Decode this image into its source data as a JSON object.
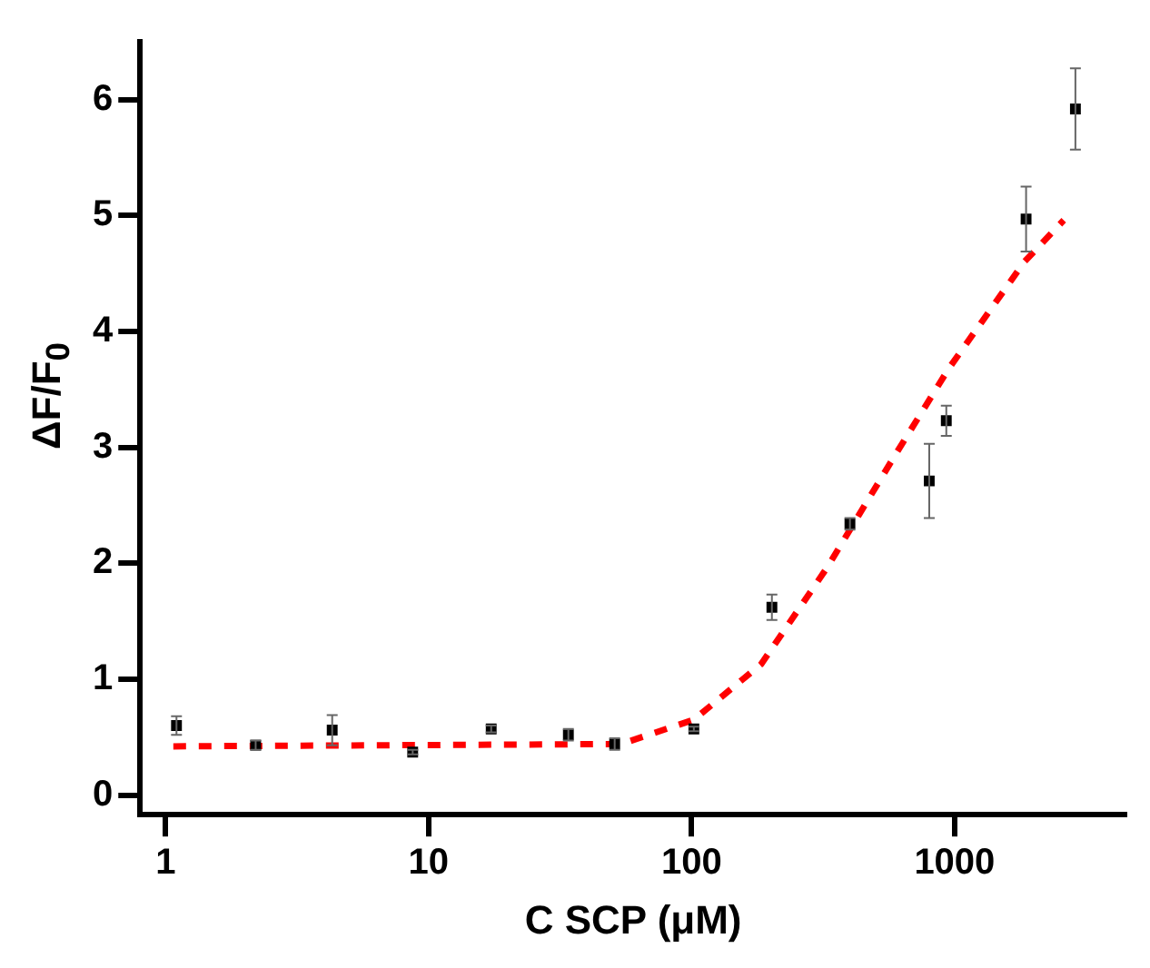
{
  "chart_data": {
    "type": "scatter",
    "xlabel": "C SCP (μM)",
    "ylabel": "ΔF/F$_{0}$",
    "log": "x",
    "xlim": [
      0.8,
      4500
    ],
    "xticks": [
      1,
      10,
      100,
      1000
    ],
    "ylim": [
      -0.17,
      6.5
    ],
    "yticks": [
      0,
      1,
      2,
      3,
      4,
      5,
      6
    ],
    "grid": false,
    "legend": false,
    "series": [
      {
        "color": "#000000",
        "marker": "square",
        "x": [
          1.1,
          2.2,
          4.3,
          8.7,
          17.3,
          34,
          51,
          102,
          202,
          400,
          801,
          930,
          1870,
          2880
        ],
        "values": [
          0.6,
          0.43,
          0.56,
          0.37,
          0.57,
          0.52,
          0.44,
          0.57,
          1.62,
          2.34,
          2.71,
          3.23,
          4.97,
          5.92
        ],
        "errors": [
          0.08,
          0.04,
          0.13,
          0.02,
          0.03,
          0.05,
          0.05,
          0.02,
          0.11,
          0.05,
          0.32,
          0.13,
          0.28,
          0.35
        ]
      },
      {
        "type": "line",
        "color": "#ff0000",
        "marker": "none",
        "line_style": "dashed",
        "x": [
          1.07,
          54,
          102,
          184,
          327,
          582,
          950,
          1840,
          2600
        ],
        "values": [
          0.42,
          0.44,
          0.65,
          1.13,
          1.96,
          2.9,
          3.68,
          4.6,
          4.96
        ]
      }
    ]
  }
}
